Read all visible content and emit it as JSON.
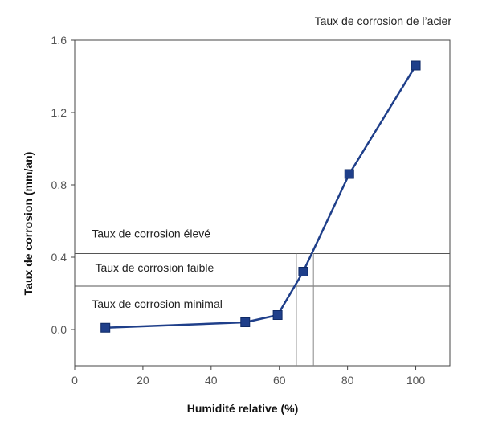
{
  "chart_data": {
    "type": "line",
    "title": "Taux de corrosion de l’acier",
    "xlabel": "Humidité relative (%)",
    "ylabel": "Taux de corrosion (mm/an)",
    "xlim": [
      0,
      110
    ],
    "ylim": [
      -0.2,
      1.6
    ],
    "x_ticks": [
      "0",
      "20",
      "40",
      "60",
      "80",
      "100"
    ],
    "x_tick_values": [
      0,
      20,
      40,
      60,
      80,
      100
    ],
    "y_ticks": [
      "0.0",
      "0.4",
      "0.8",
      "1.2",
      "1.6"
    ],
    "y_tick_values": [
      0.0,
      0.4,
      0.8,
      1.2,
      1.6
    ],
    "grid": false,
    "series": [
      {
        "x": [
          9,
          50,
          59.5,
          67,
          80.5,
          100
        ],
        "y": [
          0.01,
          0.04,
          0.08,
          0.32,
          0.86,
          1.46
        ],
        "color": "#1f3f8a",
        "marker": "square"
      }
    ],
    "reference_lines": {
      "horizontal": [
        0.42,
        0.24
      ],
      "vertical": [
        65,
        70
      ]
    },
    "annotations": [
      {
        "text": "Taux de corrosion élevé",
        "x": 5,
        "y": 0.51
      },
      {
        "text": "Taux de corrosion faible",
        "x": 6,
        "y": 0.32
      },
      {
        "text": "Taux de corrosion minimal",
        "x": 5,
        "y": 0.12
      }
    ]
  }
}
